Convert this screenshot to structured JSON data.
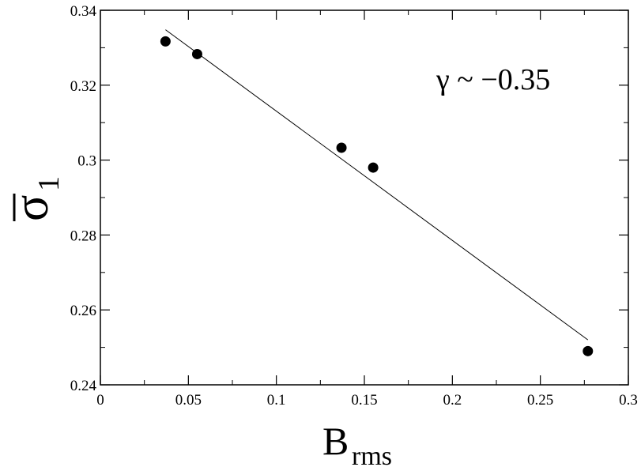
{
  "chart_data": {
    "type": "scatter",
    "title": "",
    "xlabel": {
      "main": "B",
      "subscript": "rms"
    },
    "ylabel": {
      "main": "σ",
      "subscript": "1",
      "overbar": true
    },
    "xlim": [
      0,
      0.3
    ],
    "ylim": [
      0.24,
      0.34
    ],
    "x_ticks": [
      "0",
      "0.05",
      "0.1",
      "0.15",
      "0.2",
      "0.25",
      "0.3"
    ],
    "y_ticks": [
      "0.24",
      "0.26",
      "0.28",
      "0.3",
      "0.32",
      "0.34"
    ],
    "grid": false,
    "series": [
      {
        "marker": "circle",
        "color": "#000000",
        "points": [
          {
            "x": 0.037,
            "y": 0.3317
          },
          {
            "x": 0.055,
            "y": 0.3283
          },
          {
            "x": 0.137,
            "y": 0.3033
          },
          {
            "x": 0.155,
            "y": 0.298
          },
          {
            "x": 0.277,
            "y": 0.249
          }
        ]
      }
    ],
    "fit_line": {
      "color": "#000000",
      "points": [
        {
          "x": 0.037,
          "y": 0.3348
        },
        {
          "x": 0.277,
          "y": 0.252
        }
      ]
    },
    "annotation": {
      "text": "γ ~ −0.35"
    }
  }
}
